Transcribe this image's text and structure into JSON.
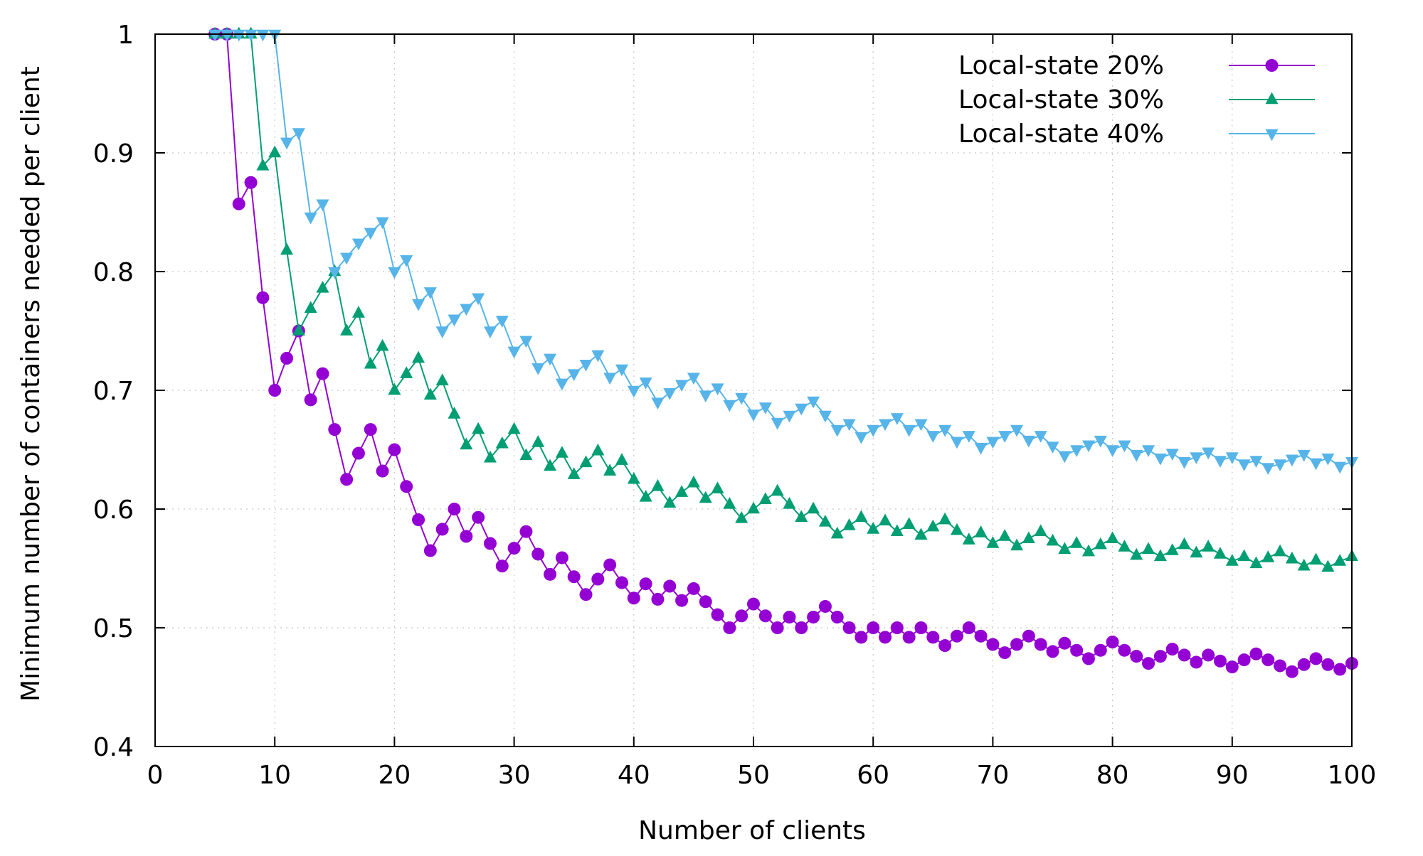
{
  "chart_data": {
    "type": "line",
    "title": "",
    "xlabel": "Number of clients",
    "ylabel": "Minimum number of containers needed per client",
    "xlim": [
      0,
      100
    ],
    "ylim": [
      0.4,
      1.0
    ],
    "xticks": [
      0,
      10,
      20,
      30,
      40,
      50,
      60,
      70,
      80,
      90,
      100
    ],
    "xtick_labels": [
      "0",
      "10",
      "20",
      "30",
      "40",
      "50",
      "60",
      "70",
      "80",
      "90",
      "100"
    ],
    "yticks": [
      0.4,
      0.5,
      0.6,
      0.7,
      0.8,
      0.9,
      1.0
    ],
    "ytick_labels": [
      "0.4",
      "0.5",
      "0.6",
      "0.7",
      "0.8",
      "0.9",
      "1"
    ],
    "grid": true,
    "legend_position": "top-right",
    "x": [
      5,
      6,
      7,
      8,
      9,
      10,
      11,
      12,
      13,
      14,
      15,
      16,
      17,
      18,
      19,
      20,
      21,
      22,
      23,
      24,
      25,
      26,
      27,
      28,
      29,
      30,
      31,
      32,
      33,
      34,
      35,
      36,
      37,
      38,
      39,
      40,
      41,
      42,
      43,
      44,
      45,
      46,
      47,
      48,
      49,
      50,
      51,
      52,
      53,
      54,
      55,
      56,
      57,
      58,
      59,
      60,
      61,
      62,
      63,
      64,
      65,
      66,
      67,
      68,
      69,
      70,
      71,
      72,
      73,
      74,
      75,
      76,
      77,
      78,
      79,
      80,
      81,
      82,
      83,
      84,
      85,
      86,
      87,
      88,
      89,
      90,
      91,
      92,
      93,
      94,
      95,
      96,
      97,
      98,
      99,
      100
    ],
    "series": [
      {
        "name": "Local-state 20%",
        "color": "#9400d3",
        "marker": "circle",
        "values": [
          1.0,
          1.0,
          0.857,
          0.875,
          0.778,
          0.7,
          0.727,
          0.75,
          0.692,
          0.714,
          0.667,
          0.625,
          0.647,
          0.667,
          0.632,
          0.65,
          0.619,
          0.591,
          0.565,
          0.583,
          0.6,
          0.577,
          0.593,
          0.571,
          0.552,
          0.567,
          0.581,
          0.562,
          0.545,
          0.559,
          0.543,
          0.528,
          0.541,
          0.553,
          0.538,
          0.525,
          0.537,
          0.524,
          0.535,
          0.523,
          0.533,
          0.522,
          0.511,
          0.5,
          0.51,
          0.52,
          0.51,
          0.5,
          0.509,
          0.5,
          0.509,
          0.518,
          0.509,
          0.5,
          0.492,
          0.5,
          0.492,
          0.5,
          0.492,
          0.5,
          0.492,
          0.485,
          0.493,
          0.5,
          0.493,
          0.486,
          0.479,
          0.486,
          0.493,
          0.486,
          0.48,
          0.487,
          0.481,
          0.474,
          0.481,
          0.488,
          0.481,
          0.476,
          0.47,
          0.476,
          0.482,
          0.477,
          0.471,
          0.477,
          0.472,
          0.467,
          0.473,
          0.478,
          0.473,
          0.468,
          0.463,
          0.469,
          0.474,
          0.469,
          0.465,
          0.47
        ]
      },
      {
        "name": "Local-state 30%",
        "color": "#009e73",
        "marker": "triangle-up",
        "values": [
          1.0,
          1.0,
          1.0,
          1.0,
          0.889,
          0.9,
          0.818,
          0.75,
          0.769,
          0.786,
          0.8,
          0.75,
          0.765,
          0.722,
          0.737,
          0.7,
          0.714,
          0.727,
          0.696,
          0.708,
          0.68,
          0.654,
          0.667,
          0.643,
          0.655,
          0.667,
          0.645,
          0.656,
          0.636,
          0.647,
          0.629,
          0.639,
          0.649,
          0.632,
          0.641,
          0.625,
          0.61,
          0.619,
          0.605,
          0.614,
          0.622,
          0.609,
          0.617,
          0.604,
          0.592,
          0.6,
          0.608,
          0.615,
          0.604,
          0.593,
          0.6,
          0.589,
          0.579,
          0.586,
          0.593,
          0.583,
          0.59,
          0.581,
          0.587,
          0.578,
          0.585,
          0.591,
          0.582,
          0.574,
          0.58,
          0.571,
          0.577,
          0.569,
          0.575,
          0.581,
          0.573,
          0.566,
          0.571,
          0.564,
          0.57,
          0.575,
          0.568,
          0.561,
          0.566,
          0.56,
          0.565,
          0.57,
          0.563,
          0.568,
          0.562,
          0.556,
          0.56,
          0.554,
          0.559,
          0.564,
          0.558,
          0.552,
          0.557,
          0.551,
          0.556,
          0.56
        ]
      },
      {
        "name": "Local-state 40%",
        "color": "#56b4e9",
        "marker": "triangle-down",
        "values": [
          1.0,
          1.0,
          1.0,
          1.0,
          1.0,
          1.0,
          0.909,
          0.917,
          0.846,
          0.857,
          0.8,
          0.812,
          0.824,
          0.833,
          0.842,
          0.8,
          0.81,
          0.773,
          0.783,
          0.75,
          0.76,
          0.769,
          0.778,
          0.75,
          0.759,
          0.733,
          0.742,
          0.719,
          0.727,
          0.706,
          0.714,
          0.722,
          0.73,
          0.711,
          0.718,
          0.7,
          0.707,
          0.69,
          0.698,
          0.705,
          0.711,
          0.696,
          0.702,
          0.688,
          0.694,
          0.68,
          0.686,
          0.673,
          0.679,
          0.685,
          0.691,
          0.679,
          0.667,
          0.672,
          0.661,
          0.667,
          0.672,
          0.677,
          0.667,
          0.672,
          0.662,
          0.667,
          0.657,
          0.662,
          0.652,
          0.657,
          0.662,
          0.667,
          0.658,
          0.662,
          0.653,
          0.645,
          0.65,
          0.654,
          0.658,
          0.65,
          0.654,
          0.646,
          0.65,
          0.643,
          0.647,
          0.64,
          0.644,
          0.648,
          0.641,
          0.644,
          0.638,
          0.641,
          0.635,
          0.638,
          0.642,
          0.646,
          0.639,
          0.643,
          0.636,
          0.64
        ]
      }
    ]
  }
}
